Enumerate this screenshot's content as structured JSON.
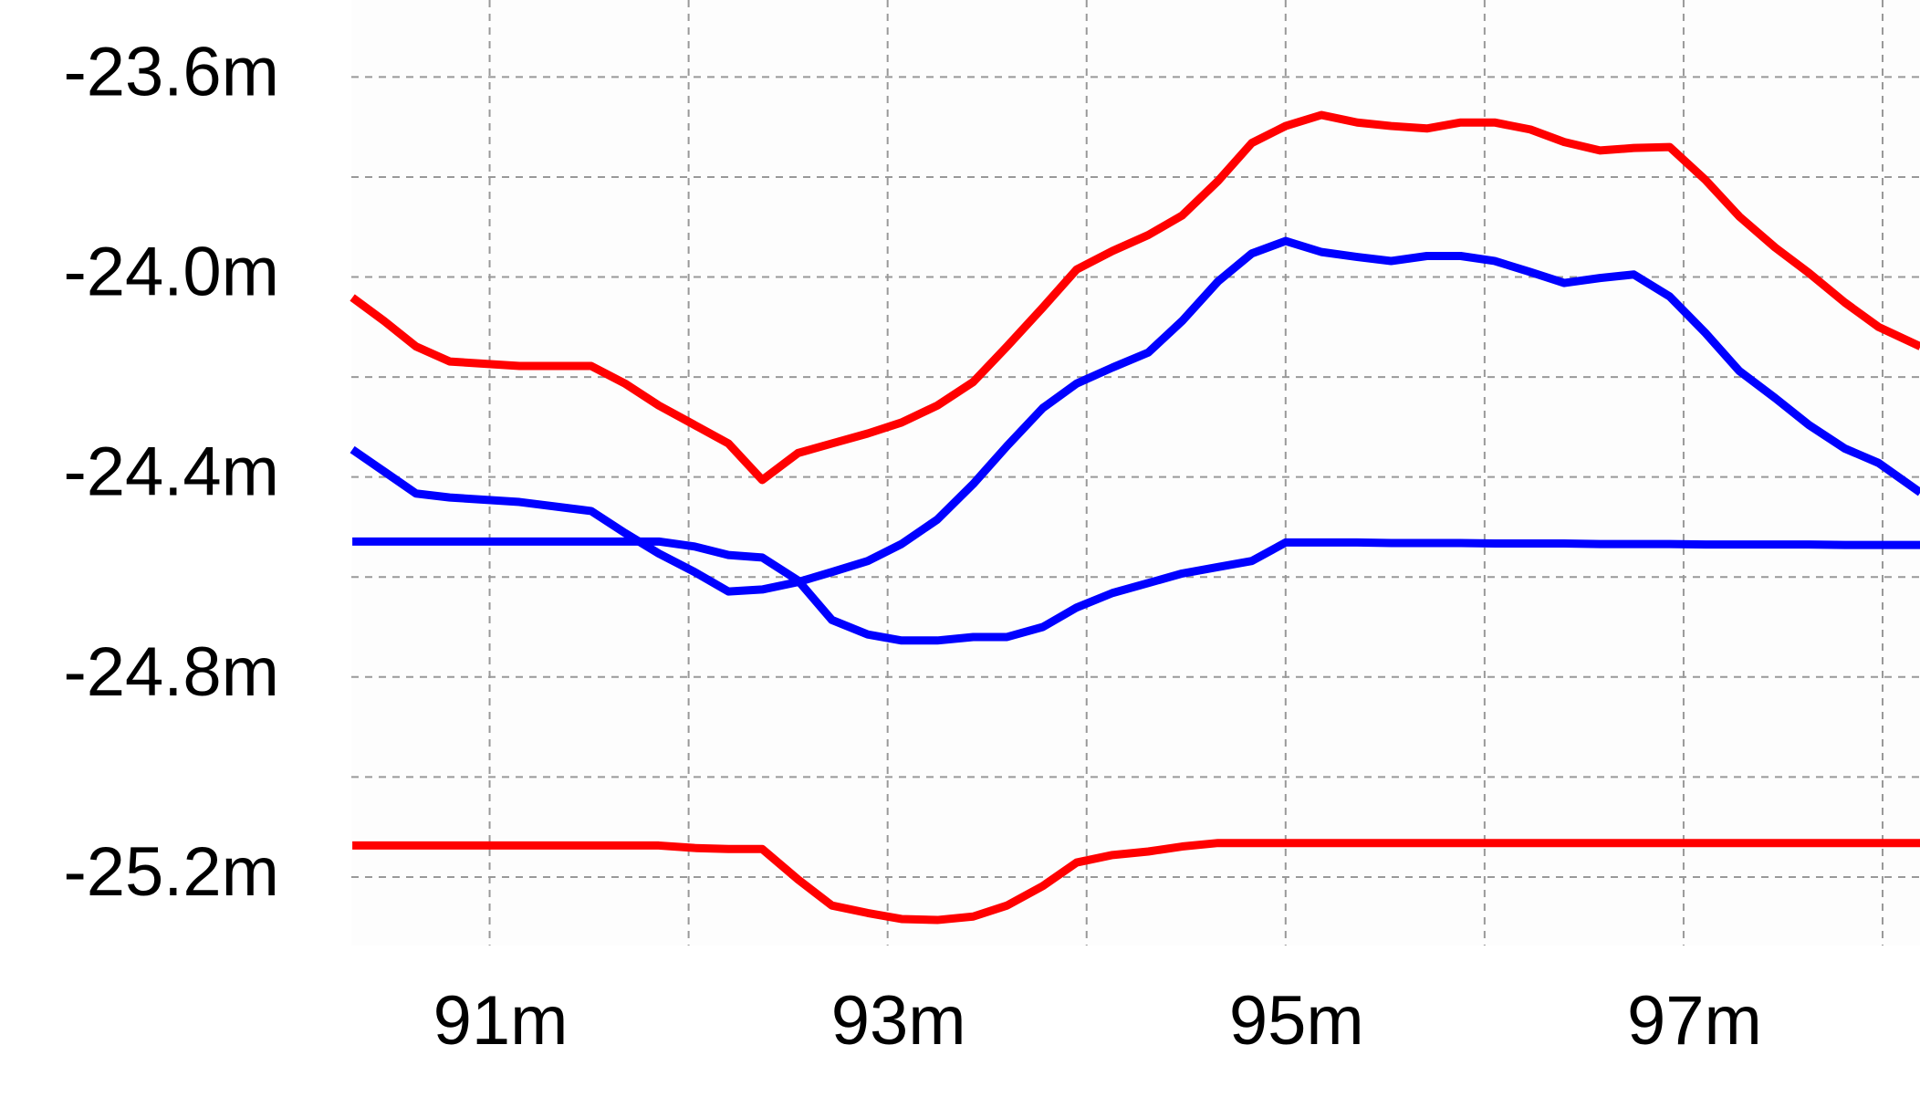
{
  "chart_data": {
    "type": "line",
    "x": [
      90.31,
      90.47,
      90.63,
      90.8,
      91.15,
      91.51,
      91.68,
      91.85,
      92.03,
      92.2,
      92.37,
      92.55,
      92.72,
      92.9,
      93.07,
      93.25,
      93.43,
      93.6,
      93.78,
      93.95,
      94.13,
      94.31,
      94.48,
      94.66,
      94.83,
      95.0,
      95.18,
      95.36,
      95.53,
      95.71,
      95.88,
      96.05,
      96.23,
      96.4,
      96.58,
      96.75,
      96.93,
      97.11,
      97.28,
      97.46,
      97.63,
      97.81,
      97.98,
      98.19
    ],
    "series": [
      {
        "color": "#ff0000",
        "values": [
          -24.041,
          -24.088,
          -24.139,
          -24.169,
          -24.178,
          -24.178,
          -24.213,
          -24.257,
          -24.296,
          -24.333,
          -24.406,
          -24.352,
          -24.333,
          -24.313,
          -24.291,
          -24.257,
          -24.21,
          -24.139,
          -24.061,
          -23.985,
          -23.948,
          -23.916,
          -23.877,
          -23.808,
          -23.732,
          -23.698,
          -23.676,
          -23.691,
          -23.698,
          -23.703,
          -23.691,
          -23.691,
          -23.705,
          -23.73,
          -23.747,
          -23.742,
          -23.74,
          -23.806,
          -23.879,
          -23.941,
          -23.992,
          -24.051,
          -24.1,
          -24.139
        ]
      },
      {
        "color": "#0000ff",
        "values": [
          -24.345,
          -24.389,
          -24.433,
          -24.441,
          -24.45,
          -24.468,
          -24.512,
          -24.553,
          -24.59,
          -24.629,
          -24.625,
          -24.61,
          -24.59,
          -24.568,
          -24.534,
          -24.485,
          -24.414,
          -24.338,
          -24.262,
          -24.213,
          -24.181,
          -24.151,
          -24.088,
          -24.009,
          -23.953,
          -23.928,
          -23.95,
          -23.96,
          -23.968,
          -23.958,
          -23.958,
          -23.968,
          -23.99,
          -24.012,
          -24.002,
          -23.995,
          -24.039,
          -24.112,
          -24.188,
          -24.242,
          -24.296,
          -24.343,
          -24.372,
          -24.431
        ]
      },
      {
        "color": "#0000ff",
        "values": [
          -24.529,
          -24.529,
          -24.529,
          -24.529,
          -24.529,
          -24.529,
          -24.529,
          -24.529,
          -24.539,
          -24.556,
          -24.561,
          -24.607,
          -24.686,
          -24.715,
          -24.727,
          -24.727,
          -24.72,
          -24.72,
          -24.7,
          -24.661,
          -24.632,
          -24.612,
          -24.593,
          -24.58,
          -24.568,
          -24.531,
          -24.531,
          -24.531,
          -24.532,
          -24.532,
          -24.532,
          -24.533,
          -24.533,
          -24.533,
          -24.534,
          -24.534,
          -24.534,
          -24.535,
          -24.535,
          -24.535,
          -24.535,
          -24.536,
          -24.536,
          -24.536
        ]
      },
      {
        "color": "#ff0000",
        "values": [
          -25.137,
          -25.137,
          -25.137,
          -25.137,
          -25.137,
          -25.137,
          -25.137,
          -25.137,
          -25.142,
          -25.144,
          -25.144,
          -25.205,
          -25.257,
          -25.272,
          -25.284,
          -25.286,
          -25.279,
          -25.257,
          -25.218,
          -25.171,
          -25.156,
          -25.149,
          -25.139,
          -25.132,
          -25.132,
          -25.132,
          -25.132,
          -25.132,
          -25.132,
          -25.132,
          -25.132,
          -25.132,
          -25.132,
          -25.132,
          -25.132,
          -25.132,
          -25.132,
          -25.132,
          -25.132,
          -25.132,
          -25.132,
          -25.132,
          -25.132,
          -25.132
        ]
      }
    ],
    "xlim": [
      90.305,
      98.188
    ],
    "ylim": [
      -25.337,
      -23.446
    ],
    "xticks": [
      {
        "value": 91,
        "label": "91m"
      },
      {
        "value": 93,
        "label": "93m"
      },
      {
        "value": 95,
        "label": "95m"
      },
      {
        "value": 97,
        "label": "97m"
      }
    ],
    "minor_xticks": [
      92,
      94,
      96,
      98
    ],
    "yticks": [
      {
        "value": -23.6,
        "label": "-23.6m"
      },
      {
        "value": -24.0,
        "label": "-24.0m"
      },
      {
        "value": -24.4,
        "label": "-24.4m"
      },
      {
        "value": -24.8,
        "label": "-24.8m"
      },
      {
        "value": -25.2,
        "label": "-25.2m"
      }
    ],
    "minor_yticks": [
      -23.8,
      -24.2,
      -24.6,
      -25.0
    ],
    "grid": true
  }
}
